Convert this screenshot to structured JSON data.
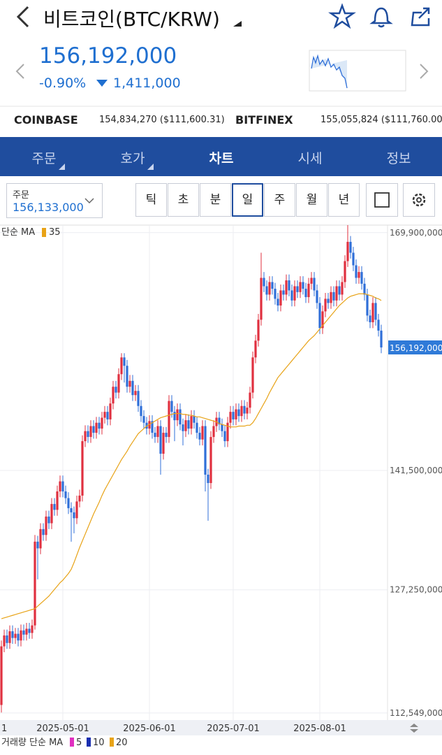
{
  "header": {
    "title": "비트코인(BTC/KRW)",
    "price": "156,192,000",
    "change_pct": "-0.90%",
    "change_amount": "1,411,000"
  },
  "exchanges": [
    {
      "name": "COINBASE",
      "value": "154,834,270 ($111,600.31)"
    },
    {
      "name": "BITFINEX",
      "value": "155,055,824 ($111,760.00)"
    }
  ],
  "tabs": [
    "주문",
    "호가",
    "차트",
    "시세",
    "정보"
  ],
  "order": {
    "label": "주문",
    "value": "156,133,000"
  },
  "intervals": [
    "틱",
    "초",
    "분",
    "일",
    "주",
    "월",
    "년"
  ],
  "chart_data": {
    "type": "candlestick",
    "up_color": "#e0303f",
    "down_color": "#2f6fd8",
    "ylim": [
      111700000,
      170800000
    ],
    "yticks": [
      {
        "value": 112549000,
        "label": "112,549,000"
      },
      {
        "value": 127250000,
        "label": "127,250,000"
      },
      {
        "value": 141500000,
        "label": "141,500,000"
      },
      {
        "value": 169900000,
        "label": "169,900,000"
      }
    ],
    "last_price": {
      "value": 156192000,
      "label": "156,192,000"
    },
    "grid": true,
    "clipped_x_label": "1",
    "categories": [
      null,
      null,
      null,
      null,
      null,
      null,
      null,
      null,
      null,
      null,
      null,
      null,
      null,
      null,
      null,
      null,
      null,
      null,
      null,
      null,
      null,
      null,
      "2025-05-01",
      null,
      null,
      null,
      null,
      null,
      null,
      null,
      null,
      null,
      null,
      null,
      null,
      null,
      null,
      null,
      null,
      null,
      null,
      null,
      null,
      null,
      null,
      null,
      null,
      null,
      null,
      null,
      null,
      null,
      null,
      "2025-06-01",
      null,
      null,
      null,
      null,
      null,
      null,
      null,
      null,
      null,
      null,
      null,
      null,
      null,
      null,
      null,
      null,
      null,
      null,
      null,
      null,
      null,
      null,
      null,
      null,
      null,
      null,
      null,
      null,
      null,
      "2025-07-01",
      null,
      null,
      null,
      null,
      null,
      null,
      null,
      null,
      null,
      null,
      null,
      null,
      null,
      null,
      null,
      null,
      null,
      null,
      null,
      null,
      null,
      null,
      null,
      null,
      null,
      null,
      null,
      null,
      null,
      null,
      "2025-08-01",
      null,
      null,
      null,
      null,
      null,
      null,
      null,
      null,
      null,
      null,
      null,
      null,
      null,
      null,
      null,
      null,
      null,
      null,
      null,
      null,
      null,
      null
    ],
    "open": [
      113500000,
      120500000,
      121800000,
      120900000,
      122300000,
      121500000,
      122000000,
      121200000,
      122400000,
      121900000,
      122600000,
      122100000,
      123000000,
      133000000,
      132200000,
      134500000,
      133800000,
      136000000,
      135200000,
      137500000,
      136800000,
      139000000,
      140200000,
      139000000,
      138200000,
      137000000,
      136500000,
      135800000,
      137800000,
      138500000,
      145000000,
      146200000,
      145500000,
      146800000,
      146000000,
      147200000,
      146500000,
      147800000,
      148500000,
      147600000,
      149500000,
      151500000,
      150800000,
      153000000,
      155000000,
      154000000,
      151500000,
      152200000,
      150500000,
      151000000,
      149200000,
      148000000,
      147200000,
      146500000,
      147400000,
      146000000,
      145500000,
      146800000,
      143500000,
      146000000,
      145500000,
      149800000,
      148500000,
      147500000,
      148800000,
      147000000,
      146200000,
      147500000,
      146500000,
      148000000,
      147200000,
      146000000,
      145200000,
      146800000,
      141000000,
      140000000,
      145500000,
      146800000,
      147800000,
      147000000,
      146200000,
      145000000,
      147200000,
      148500000,
      147600000,
      148800000,
      148000000,
      149200000,
      148300000,
      149000000,
      150800000,
      155000000,
      157000000,
      159500000,
      164500000,
      163500000,
      162500000,
      164000000,
      163200000,
      162000000,
      161200000,
      163000000,
      162500000,
      164200000,
      163000000,
      161800000,
      163500000,
      162800000,
      164000000,
      163200000,
      162200000,
      163800000,
      164500000,
      163000000,
      161500000,
      158500000,
      160500000,
      162000000,
      161500000,
      162800000,
      161800000,
      163500000,
      162500000,
      164000000,
      166500000,
      168800000,
      167500000,
      166000000,
      164500000,
      165200000,
      163800000,
      162500000,
      160000000,
      159200000,
      161500000,
      159500000,
      158200000
    ],
    "high": [
      121200000,
      122500000,
      122500000,
      123000000,
      123000000,
      122700000,
      122700000,
      123100000,
      123100000,
      123300000,
      123300000,
      123700000,
      133800000,
      133700000,
      135200000,
      135200000,
      136700000,
      136700000,
      138200000,
      138200000,
      139700000,
      140900000,
      140900000,
      139700000,
      138900000,
      137700000,
      137200000,
      138500000,
      139200000,
      145700000,
      146900000,
      146900000,
      147500000,
      147500000,
      147900000,
      147900000,
      148500000,
      149200000,
      149200000,
      150200000,
      152200000,
      152200000,
      153700000,
      155500000,
      155500000,
      154700000,
      152900000,
      152900000,
      151700000,
      151700000,
      149900000,
      148700000,
      147900000,
      148100000,
      148100000,
      146700000,
      147500000,
      147500000,
      146700000,
      146700000,
      150500000,
      150500000,
      149200000,
      149500000,
      149500000,
      147700000,
      148200000,
      148200000,
      148700000,
      148700000,
      147900000,
      146700000,
      147500000,
      147500000,
      141700000,
      146200000,
      147500000,
      148500000,
      148500000,
      147700000,
      146900000,
      147900000,
      149200000,
      149200000,
      149500000,
      149500000,
      149900000,
      149900000,
      149700000,
      151500000,
      155700000,
      157700000,
      160200000,
      167500000,
      165200000,
      164200000,
      164700000,
      164700000,
      163900000,
      162700000,
      163700000,
      163700000,
      164900000,
      164900000,
      163700000,
      164200000,
      164200000,
      164700000,
      164700000,
      163900000,
      164500000,
      165200000,
      165200000,
      163700000,
      162200000,
      161200000,
      162700000,
      162700000,
      163500000,
      163500000,
      164200000,
      164200000,
      164700000,
      167200000,
      170800000,
      169500000,
      168200000,
      166700000,
      165900000,
      165900000,
      164500000,
      163200000,
      160700000,
      162200000,
      162200000,
      160200000,
      158900000
    ],
    "low": [
      112600000,
      119800000,
      120200000,
      120200000,
      120800000,
      120800000,
      120500000,
      120500000,
      121200000,
      121200000,
      121400000,
      121400000,
      122500000,
      128500000,
      131500000,
      133100000,
      133100000,
      134500000,
      134500000,
      136100000,
      136100000,
      138300000,
      138300000,
      137500000,
      136300000,
      133000000,
      134000000,
      135100000,
      137100000,
      137800000,
      144300000,
      144800000,
      144800000,
      145300000,
      145300000,
      145800000,
      145800000,
      147100000,
      146900000,
      146900000,
      148800000,
      150100000,
      150100000,
      152300000,
      152000000,
      150800000,
      150800000,
      149800000,
      149800000,
      148500000,
      147300000,
      146500000,
      145800000,
      145800000,
      145300000,
      144800000,
      144800000,
      141000000,
      142800000,
      144800000,
      144800000,
      147800000,
      145000000,
      146800000,
      146300000,
      144500000,
      145500000,
      145800000,
      145800000,
      146500000,
      145300000,
      144500000,
      144500000,
      139000000,
      135500000,
      139300000,
      144800000,
      146100000,
      146300000,
      145500000,
      144300000,
      144300000,
      146500000,
      146900000,
      146900000,
      147300000,
      147300000,
      147600000,
      147600000,
      148300000,
      150100000,
      154300000,
      156300000,
      158800000,
      162800000,
      161800000,
      161800000,
      162500000,
      161300000,
      160500000,
      160500000,
      161800000,
      161800000,
      162300000,
      161100000,
      161100000,
      162100000,
      162100000,
      162500000,
      161500000,
      161500000,
      163100000,
      162300000,
      160800000,
      157800000,
      157800000,
      159800000,
      160800000,
      160800000,
      161100000,
      161100000,
      161800000,
      161800000,
      163300000,
      165800000,
      166800000,
      165300000,
      163800000,
      163800000,
      163100000,
      161800000,
      159300000,
      158500000,
      158500000,
      158800000,
      157500000,
      155500000
    ],
    "close": [
      120500000,
      121800000,
      120900000,
      122300000,
      121500000,
      122000000,
      121200000,
      122400000,
      121900000,
      122600000,
      122100000,
      123000000,
      133000000,
      132200000,
      134500000,
      133800000,
      136000000,
      135200000,
      137500000,
      136800000,
      139000000,
      140200000,
      139000000,
      138200000,
      137000000,
      136500000,
      135800000,
      137800000,
      138500000,
      145000000,
      146200000,
      145500000,
      146800000,
      146000000,
      147200000,
      146500000,
      147800000,
      148500000,
      147600000,
      149500000,
      151500000,
      150800000,
      153000000,
      155000000,
      154000000,
      151500000,
      152200000,
      150500000,
      151000000,
      149200000,
      148000000,
      147200000,
      146500000,
      147400000,
      146000000,
      145500000,
      146800000,
      143500000,
      146000000,
      145500000,
      149800000,
      148500000,
      147500000,
      148800000,
      147000000,
      146200000,
      147500000,
      146500000,
      148000000,
      147200000,
      146000000,
      145200000,
      146800000,
      141000000,
      140000000,
      145500000,
      146800000,
      147800000,
      147000000,
      146200000,
      145000000,
      147200000,
      148500000,
      147600000,
      148800000,
      148000000,
      149200000,
      148300000,
      149000000,
      150800000,
      155000000,
      157000000,
      159500000,
      164500000,
      163500000,
      162500000,
      164000000,
      163200000,
      162000000,
      161200000,
      163000000,
      162500000,
      164200000,
      163000000,
      161800000,
      163500000,
      162800000,
      164000000,
      163200000,
      162200000,
      163800000,
      164500000,
      163000000,
      161500000,
      158500000,
      160500000,
      162000000,
      161500000,
      162800000,
      161800000,
      163500000,
      162500000,
      164000000,
      166500000,
      168800000,
      167500000,
      166000000,
      164500000,
      165200000,
      163800000,
      162500000,
      160000000,
      159200000,
      161500000,
      159500000,
      158200000,
      156192000
    ],
    "ma": {
      "name": "단순 MA",
      "period": 35,
      "color": "#e8a317",
      "values": [
        123800000,
        123900000,
        124000000,
        124100000,
        124200000,
        124300000,
        124400000,
        124500000,
        124600000,
        124700000,
        124800000,
        124900000,
        125000000,
        125300000,
        125600000,
        125900000,
        126200000,
        126500000,
        126900000,
        127300000,
        127700000,
        128100000,
        128400000,
        128800000,
        129200000,
        129700000,
        130500000,
        131400000,
        132300000,
        133100000,
        133900000,
        134700000,
        135500000,
        136300000,
        137000000,
        137700000,
        138500000,
        139200000,
        139800000,
        140400000,
        141000000,
        141600000,
        142200000,
        142800000,
        143300000,
        143800000,
        144400000,
        144900000,
        145400000,
        145900000,
        146200000,
        146500000,
        146800000,
        147000000,
        147200000,
        147400000,
        147600000,
        147800000,
        147900000,
        148000000,
        148100000,
        148200000,
        148300000,
        148300000,
        148300000,
        148200000,
        148200000,
        148100000,
        148100000,
        148000000,
        147900000,
        147900000,
        147800000,
        147700000,
        147600000,
        147500000,
        147400000,
        147300000,
        147100000,
        147000000,
        146900000,
        146800000,
        146700000,
        146700000,
        146700000,
        146800000,
        146800000,
        146800000,
        146900000,
        146900000,
        147200000,
        147700000,
        148300000,
        148900000,
        149500000,
        150100000,
        150800000,
        151400000,
        152000000,
        152600000,
        153000000,
        153400000,
        153800000,
        154200000,
        154600000,
        155000000,
        155400000,
        155800000,
        156200000,
        156600000,
        157000000,
        157300000,
        157600000,
        158000000,
        158400000,
        158800000,
        159200000,
        159600000,
        160000000,
        160400000,
        160800000,
        161200000,
        161500000,
        161800000,
        162100000,
        162300000,
        162400000,
        162500000,
        162600000,
        162600000,
        162600000,
        162500000,
        162400000,
        162300000,
        162100000,
        162000000,
        161800000
      ]
    },
    "volume_legend": {
      "label": "거래량 단순 MA",
      "items": [
        {
          "value": 5,
          "color": "#e030c0"
        },
        {
          "value": 10,
          "color": "#1a2fb0"
        },
        {
          "value": 20,
          "color": "#e8a317"
        }
      ]
    }
  }
}
